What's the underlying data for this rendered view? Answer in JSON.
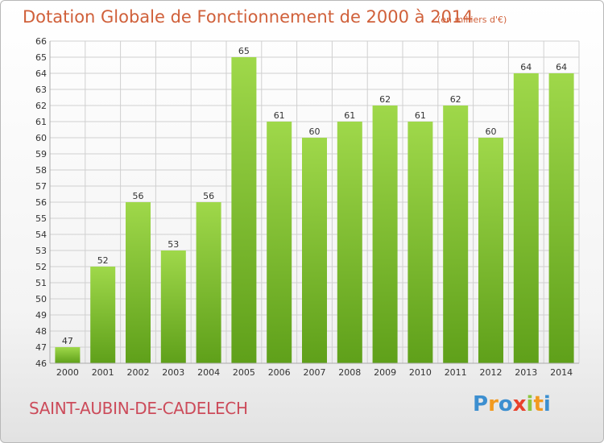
{
  "header": {
    "title": "Dotation Globale de Fonctionnement de 2000 à 2014",
    "unit": "(en milliers d'€)"
  },
  "footer": {
    "place": "SAINT-AUBIN-DE-CADELECH",
    "logo_letters": [
      "P",
      "r",
      "o",
      "x",
      "i",
      "t",
      "i"
    ],
    "logo_colors": [
      "#3c8fd0",
      "#f29a1f",
      "#3c8fd0",
      "#e8412c",
      "#8cc63f",
      "#f29a1f",
      "#3c8fd0"
    ]
  },
  "colors": {
    "bar_top": "#9fd84a",
    "bar_bottom": "#5fa01a",
    "grid": "#d0d0d0",
    "text": "#333333"
  },
  "chart_data": {
    "type": "bar",
    "categories": [
      "2000",
      "2001",
      "2002",
      "2003",
      "2004",
      "2005",
      "2006",
      "2007",
      "2008",
      "2009",
      "2010",
      "2011",
      "2012",
      "2013",
      "2014"
    ],
    "values": [
      47,
      52,
      56,
      53,
      56,
      65,
      61,
      60,
      61,
      62,
      61,
      62,
      60,
      64,
      64
    ],
    "data_labels": [
      "47",
      "52",
      "56",
      "53",
      "56",
      "65",
      "61",
      "60",
      "61",
      "62",
      "61",
      "62",
      "60",
      "64",
      "64"
    ],
    "yticks": [
      "46",
      "47",
      "48",
      "49",
      "50",
      "51",
      "52",
      "53",
      "54",
      "55",
      "56",
      "57",
      "58",
      "59",
      "60",
      "61",
      "62",
      "63",
      "64",
      "65",
      "66"
    ],
    "ylim": [
      46,
      66
    ],
    "grid": true
  }
}
